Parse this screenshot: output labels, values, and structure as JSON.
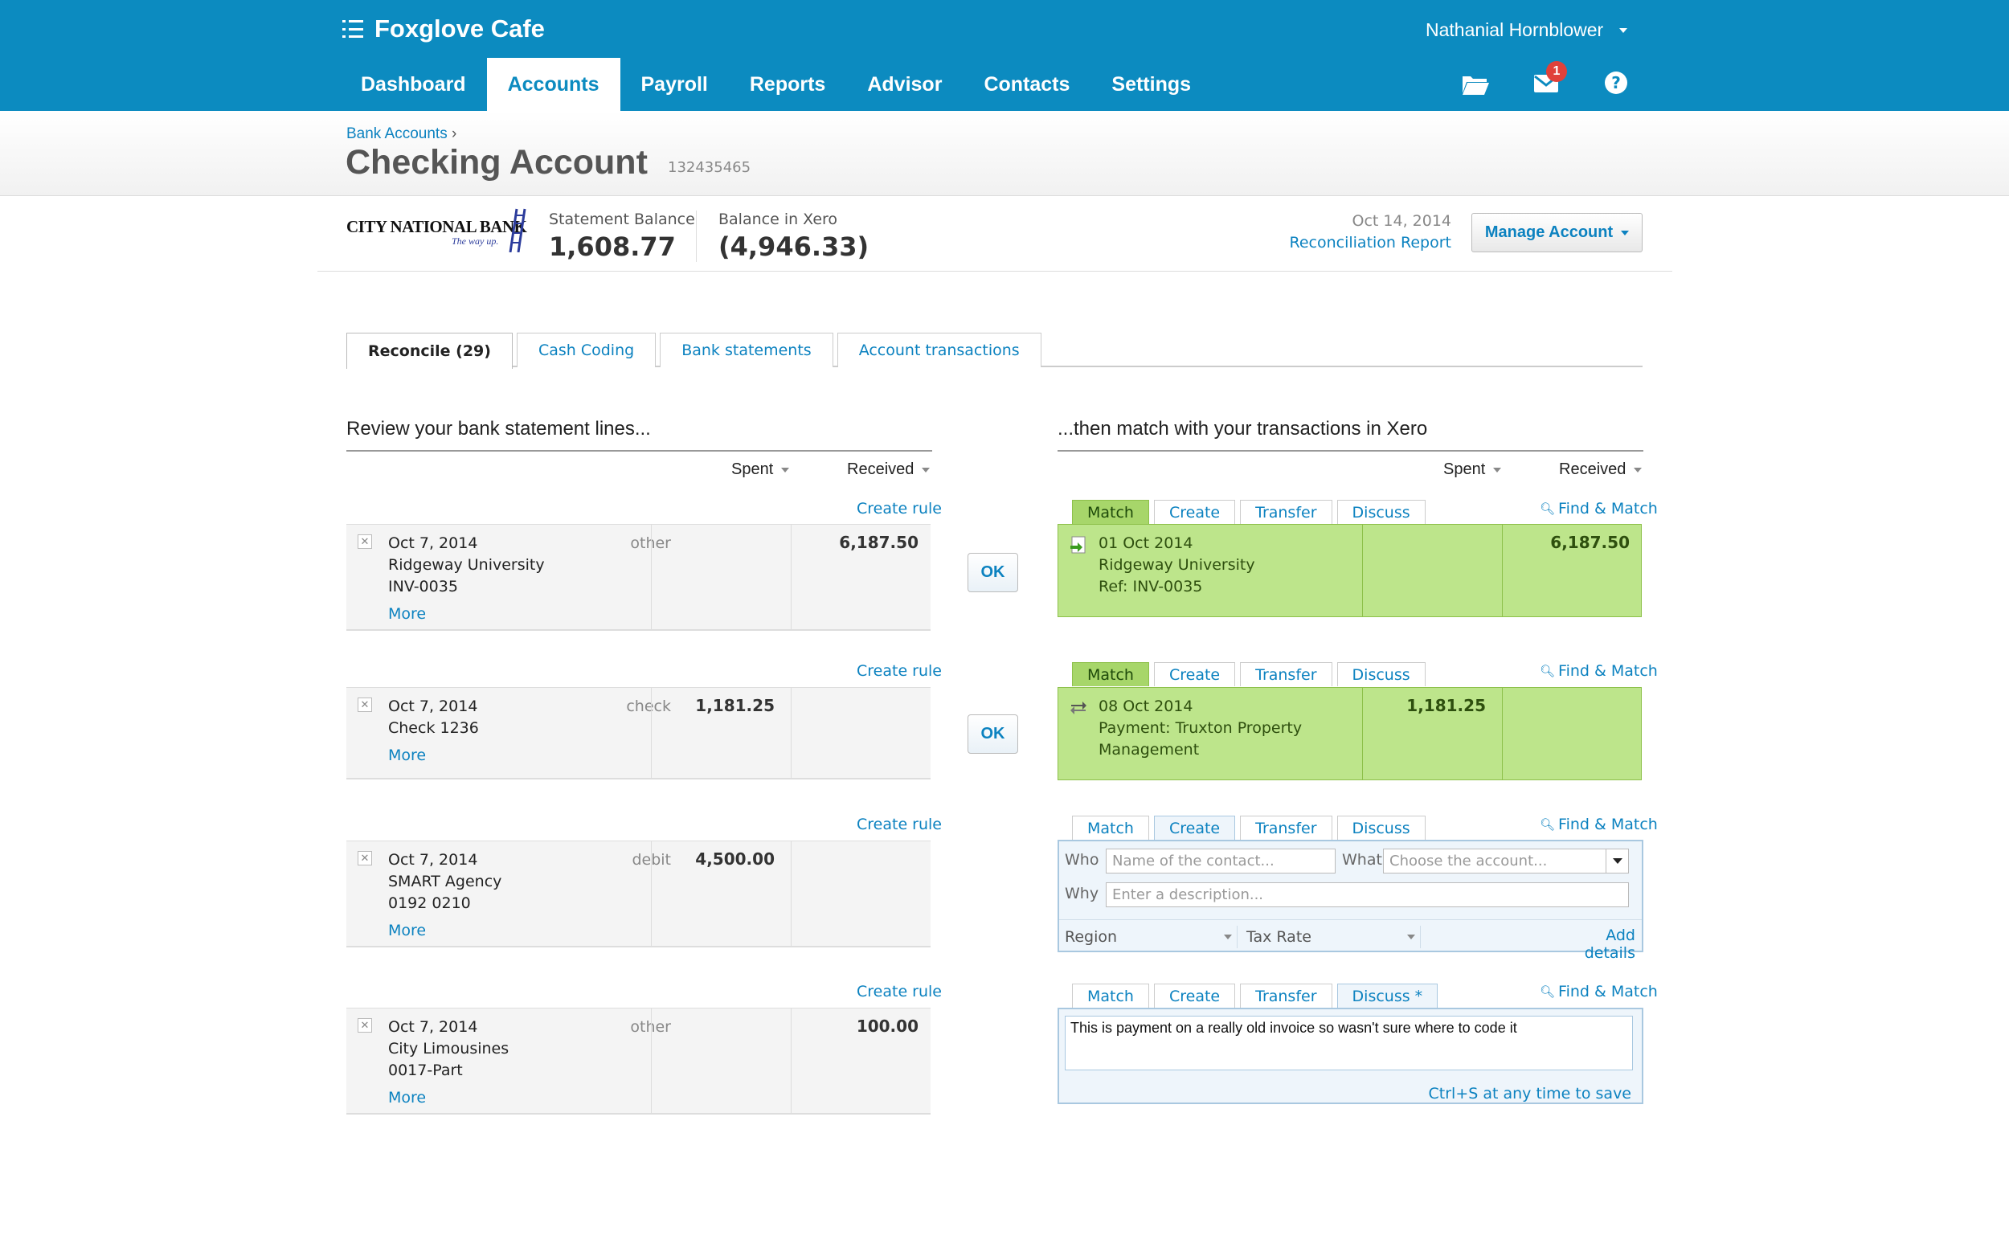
{
  "header": {
    "org_name": "Foxglove Cafe",
    "user_name": "Nathanial Hornblower",
    "nav": [
      "Dashboard",
      "Accounts",
      "Payroll",
      "Reports",
      "Advisor",
      "Contacts",
      "Settings"
    ],
    "active_nav": "Accounts",
    "icons": [
      "folder-icon",
      "mail-icon",
      "help-icon"
    ],
    "mail_badge": "1"
  },
  "page": {
    "breadcrumb": "Bank Accounts",
    "title": "Checking Account",
    "account_number": "132435465"
  },
  "balances": {
    "bank_name": "CITY NATIONAL BANK",
    "bank_tagline": "The way up.",
    "statement_label": "Statement Balance",
    "statement_value": "1,608.77",
    "xero_label": "Balance in Xero",
    "xero_value": "(4,946.33)",
    "date": "Oct 14, 2014",
    "report_link": "Reconciliation Report",
    "manage_button": "Manage Account"
  },
  "tabs": [
    "Reconcile (29)",
    "Cash Coding",
    "Bank statements",
    "Account transactions"
  ],
  "left": {
    "heading": "Review your bank statement lines...",
    "col_spent": "Spent",
    "col_received": "Received",
    "create_rule": "Create rule",
    "more": "More",
    "lines": [
      {
        "date": "Oct 7, 2014",
        "payee": "Ridgeway University",
        "ref": "INV-0035",
        "type": "other",
        "spent": "",
        "received": "6,187.50"
      },
      {
        "date": "Oct 7, 2014",
        "payee": "Check 1236",
        "ref": "",
        "type": "check",
        "spent": "1,181.25",
        "received": ""
      },
      {
        "date": "Oct 7, 2014",
        "payee": "SMART Agency",
        "ref": "0192 0210",
        "type": "debit",
        "spent": "4,500.00",
        "received": ""
      },
      {
        "date": "Oct 7, 2014",
        "payee": "City Limousines",
        "ref": "0017-Part",
        "type": "other",
        "spent": "",
        "received": "100.00"
      }
    ]
  },
  "ok_label": "OK",
  "right": {
    "heading": "...then match with your transactions in Xero",
    "col_spent": "Spent",
    "col_received": "Received",
    "tabs": [
      "Match",
      "Create",
      "Transfer",
      "Discuss"
    ],
    "discuss_tab_edited": "Discuss *",
    "find_match": "Find & Match",
    "matches": [
      {
        "date": "01 Oct 2014",
        "line1": "Ridgeway University",
        "line2": "Ref: INV-0035",
        "spent": "",
        "received": "6,187.50"
      },
      {
        "date": "08 Oct 2014",
        "line1": "Payment: Truxton Property",
        "line2": "Management",
        "spent": "1,181.25",
        "received": ""
      }
    ],
    "create_form": {
      "who_label": "Who",
      "who_placeholder": "Name of the contact...",
      "what_label": "What",
      "what_placeholder": "Choose the account...",
      "why_label": "Why",
      "why_placeholder": "Enter a description...",
      "region": "Region",
      "tax_rate": "Tax Rate",
      "add_details": "Add details"
    },
    "discuss": {
      "text": "This is payment on a really old invoice so wasn't sure where to code it",
      "hint": "Ctrl+S at any time to save"
    }
  },
  "colors": {
    "brand": "#0c8bc0",
    "match_green": "#bde58b",
    "link": "#0c82c0"
  }
}
